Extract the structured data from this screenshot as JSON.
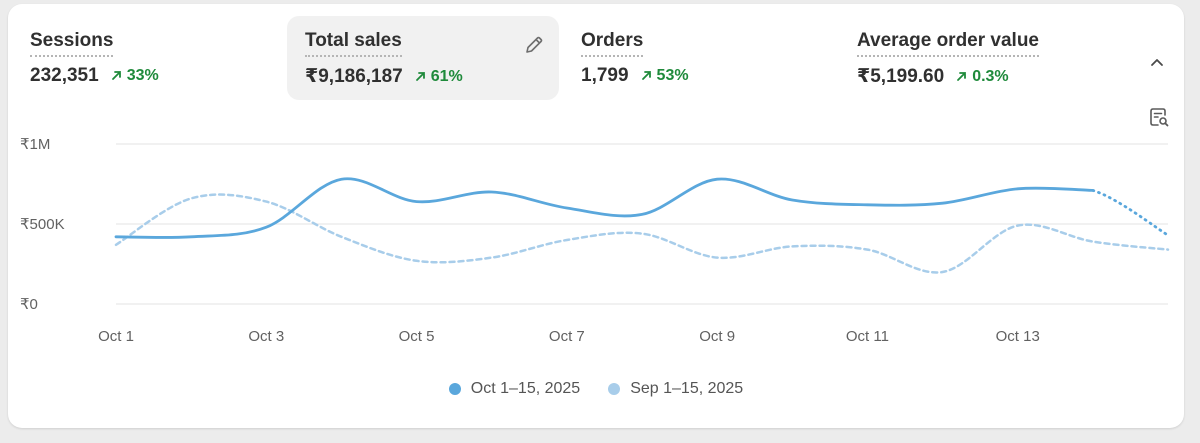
{
  "metrics": [
    {
      "label": "Sessions",
      "value": "232,351",
      "change": "33%"
    },
    {
      "label": "Total sales",
      "value": "₹9,186,187",
      "change": "61%"
    },
    {
      "label": "Orders",
      "value": "1,799",
      "change": "53%"
    },
    {
      "label": "Average order value",
      "value": "₹5,199.60",
      "change": "0.3%"
    }
  ],
  "colors": {
    "current": "#5aa7dc",
    "previous": "#a8cdea",
    "positive": "#1f8a3b",
    "grid": "#e3e3e3"
  },
  "icons": {
    "edit": "pencil-icon",
    "collapse": "chevron-up-icon",
    "report": "report-search-icon",
    "trend": "arrow-up-right-icon"
  },
  "chart_data": {
    "type": "line",
    "x": [
      "Oct 1",
      "Oct 2",
      "Oct 3",
      "Oct 4",
      "Oct 5",
      "Oct 6",
      "Oct 7",
      "Oct 8",
      "Oct 9",
      "Oct 10",
      "Oct 11",
      "Oct 12",
      "Oct 13",
      "Oct 14",
      "Oct 15"
    ],
    "x_tick_labels": [
      "Oct 1",
      "Oct 3",
      "Oct 5",
      "Oct 7",
      "Oct 9",
      "Oct 11",
      "Oct 13"
    ],
    "y_tick_labels": [
      "₹0",
      "₹500K",
      "₹1M"
    ],
    "y_ticks": [
      0,
      500000,
      1000000
    ],
    "ylim": [
      0,
      1000000
    ],
    "grid": true,
    "legend_position": "bottom",
    "series": [
      {
        "name": "Oct 1–15, 2025",
        "values": [
          420000,
          420000,
          480000,
          780000,
          640000,
          700000,
          600000,
          560000,
          780000,
          650000,
          620000,
          630000,
          720000,
          710000,
          430000
        ],
        "style": "solid",
        "dotted_last_segment": true
      },
      {
        "name": "Sep 1–15, 2025",
        "values": [
          370000,
          660000,
          640000,
          420000,
          270000,
          290000,
          400000,
          440000,
          290000,
          360000,
          340000,
          200000,
          490000,
          390000,
          340000
        ],
        "style": "dashed"
      }
    ]
  }
}
